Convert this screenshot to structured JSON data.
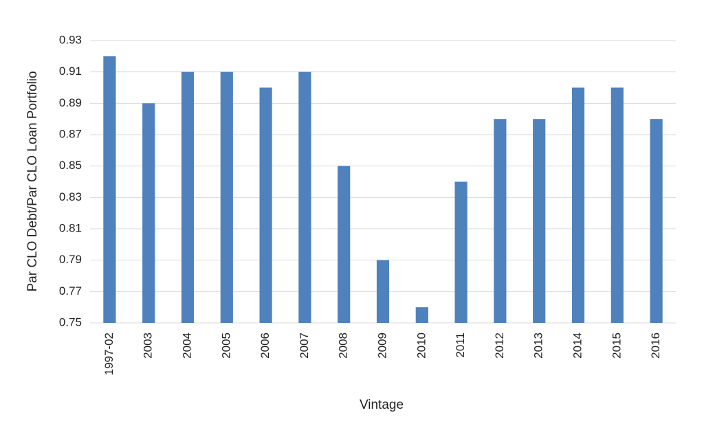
{
  "chart_data": {
    "type": "bar",
    "x_label": "Vintage",
    "y_label": "Par CLO Debt/Par CLO Loan Portfolio",
    "categories": [
      "1997-02",
      "2003",
      "2004",
      "2005",
      "2006",
      "2007",
      "2008",
      "2009",
      "2010",
      "2011",
      "2012",
      "2013",
      "2014",
      "2015",
      "2016"
    ],
    "values": [
      0.92,
      0.89,
      0.91,
      0.91,
      0.9,
      0.91,
      0.85,
      0.79,
      0.76,
      0.84,
      0.88,
      0.88,
      0.9,
      0.9,
      0.88
    ],
    "color": "#4f81bd",
    "ylim": [
      0.75,
      0.93
    ],
    "yticks": [
      0.75,
      0.77,
      0.79,
      0.81,
      0.83,
      0.85,
      0.87,
      0.89,
      0.91,
      0.93
    ],
    "grid": true
  }
}
